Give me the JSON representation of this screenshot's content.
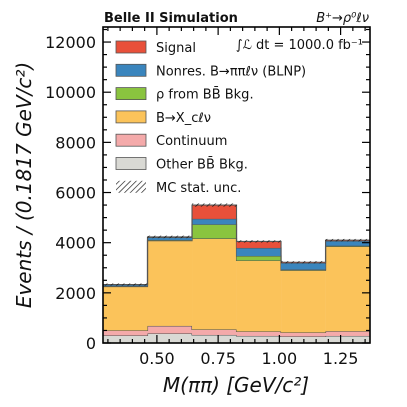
{
  "header": {
    "experiment_label": "Belle II Simulation",
    "channel_label": "B⁺→ρ⁰ℓν",
    "luminosity_label": "∫ℒ dt = 1000.0 fb⁻¹"
  },
  "chart_data": {
    "type": "bar",
    "stacked": true,
    "histogram": true,
    "title": "",
    "xlabel": "M(ππ)  [GeV/c²]",
    "ylabel": "Events / (0.1817 GeV/c²)",
    "xlim": [
      0.28,
      1.37
    ],
    "ylim": [
      0,
      12600
    ],
    "bin_edges": [
      0.28,
      0.4617,
      0.6434,
      0.8251,
      1.0068,
      1.1885,
      1.37
    ],
    "x_ticks": [
      0.5,
      0.75,
      1.0,
      1.25
    ],
    "x_tick_labels": [
      "0.50",
      "0.75",
      "1.00",
      "1.25"
    ],
    "y_ticks": [
      0,
      2000,
      4000,
      6000,
      8000,
      10000,
      12000
    ],
    "y_tick_labels": [
      "0",
      "2000",
      "4000",
      "6000",
      "8000",
      "10000",
      "12000"
    ],
    "grid": false,
    "legend_position": "upper-left",
    "series": [
      {
        "name": "Other BB̄ Bkg.",
        "color": "#d9d9d4",
        "values": [
          300,
          380,
          320,
          280,
          260,
          280
        ]
      },
      {
        "name": "Continuum",
        "color": "#f4aaaa",
        "values": [
          200,
          300,
          220,
          180,
          160,
          190
        ]
      },
      {
        "name": "B→X_cℓν",
        "color": "#fbc35a",
        "values": [
          1750,
          3400,
          3630,
          2830,
          2480,
          3380
        ]
      },
      {
        "name": "ρ from BB̄ Bkg.",
        "color": "#8ac43f",
        "values": [
          20,
          30,
          560,
          180,
          30,
          30
        ]
      },
      {
        "name": "Nonres. B→ππℓν (BLNP)",
        "color": "#3a85bd",
        "values": [
          50,
          100,
          220,
          320,
          260,
          190
        ]
      },
      {
        "name": "Signal",
        "color": "#e8503a",
        "values": [
          10,
          20,
          550,
          260,
          30,
          30
        ]
      }
    ],
    "uncertainty_label": "MC stat. unc.",
    "uncertainty_rel": 0.012
  }
}
